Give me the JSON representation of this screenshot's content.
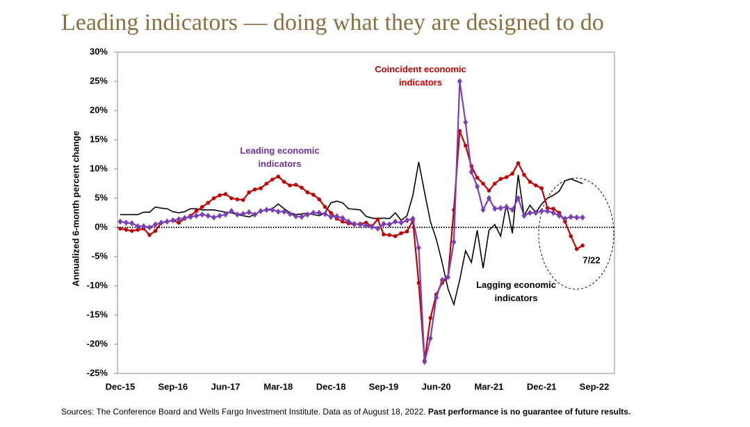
{
  "chart_data": {
    "type": "line",
    "title": "Leading indicators — doing what they are designed to do",
    "y_label": "Annualized 6-month percent change",
    "source": "Sources: The Conference Board and Wells Fargo Investment Institute. Data as of August 18, 2022.",
    "source_bold": "Past performance is no guarantee of future results.",
    "end_annotation": "7/22",
    "categories": [
      "Dec-15",
      null,
      null,
      null,
      null,
      null,
      null,
      null,
      null,
      "Sep-16",
      null,
      null,
      null,
      null,
      null,
      null,
      null,
      null,
      "Jun-17",
      null,
      null,
      null,
      null,
      null,
      null,
      null,
      null,
      "Mar-18",
      null,
      null,
      null,
      null,
      null,
      null,
      null,
      null,
      "Dec-18",
      null,
      null,
      null,
      null,
      null,
      null,
      null,
      null,
      "Sep-19",
      null,
      null,
      null,
      null,
      null,
      null,
      null,
      null,
      "Jun-20",
      null,
      null,
      null,
      null,
      null,
      null,
      null,
      null,
      "Mar-21",
      null,
      null,
      null,
      null,
      null,
      null,
      null,
      null,
      "Dec-21",
      null,
      null,
      null,
      null,
      null,
      null,
      null,
      null,
      "Sep-22"
    ],
    "ylim": [
      -25,
      30
    ],
    "yticks": [
      {
        "value": 30,
        "label": "30%"
      },
      {
        "value": 25,
        "label": "25%"
      },
      {
        "value": 20,
        "label": "20%"
      },
      {
        "value": 15,
        "label": "15%"
      },
      {
        "value": 10,
        "label": "10%"
      },
      {
        "value": 5,
        "label": "5%"
      },
      {
        "value": 0,
        "label": "0%"
      },
      {
        "value": -5,
        "label": "-5%"
      },
      {
        "value": -10,
        "label": "-10%"
      },
      {
        "value": -15,
        "label": "-15%"
      },
      {
        "value": -20,
        "label": "-20%"
      },
      {
        "value": -25,
        "label": "-25%"
      }
    ],
    "series": [
      {
        "name": "Lagging economic indicators",
        "color": "#000000",
        "marker": "none",
        "values": [
          2.2,
          2.2,
          2.2,
          2.2,
          2.6,
          2.6,
          3.5,
          3.3,
          3.2,
          2.7,
          2.5,
          2.7,
          3.2,
          3.2,
          3.0,
          3.0,
          3.0,
          2.8,
          2.6,
          2.5,
          2.2,
          2.0,
          1.8,
          2.2,
          2.8,
          3.0,
          3.2,
          4.0,
          3.2,
          2.5,
          2.2,
          2.3,
          2.4,
          2.2,
          2.0,
          2.5,
          4.2,
          4.5,
          4.2,
          3.2,
          3.1,
          3.0,
          1.9,
          1.6,
          1.5,
          1.6,
          1.5,
          2.5,
          1.2,
          2.0,
          5.5,
          11.2,
          6.0,
          1.0,
          -2.0,
          -6.0,
          -10.5,
          -13.2,
          -9.0,
          -4.0,
          -6.0,
          -0.5,
          -7.0,
          -0.5,
          0.5,
          -1.5,
          4.0,
          -1.0,
          9.0,
          2.0,
          3.8,
          2.5,
          4.0,
          5.0,
          5.5,
          6.2,
          8.0,
          8.3,
          7.9,
          7.5,
          null,
          null
        ]
      },
      {
        "name": "Coincident economic indicators",
        "color": "#c00000",
        "marker": "circle",
        "values": [
          -0.2,
          -0.4,
          -0.6,
          -0.4,
          -0.2,
          -1.3,
          -0.6,
          0.8,
          1.0,
          1.2,
          0.8,
          1.5,
          2.0,
          2.8,
          3.5,
          4.2,
          5.0,
          5.5,
          5.7,
          5.0,
          4.8,
          4.7,
          6.0,
          6.5,
          6.7,
          7.5,
          8.2,
          8.7,
          7.8,
          7.2,
          7.3,
          6.8,
          6.0,
          5.6,
          4.8,
          3.5,
          2.5,
          1.5,
          1.0,
          0.7,
          0.5,
          0.6,
          0.8,
          0.2,
          1.4,
          -1.2,
          -1.3,
          -1.5,
          -1.0,
          -0.7,
          1.2,
          -9.5,
          -22.8,
          -15.5,
          -11.5,
          -9.5,
          -8.5,
          3,
          16.5,
          14,
          10.5,
          8.5,
          7.5,
          6.3,
          7.5,
          8.3,
          8.6,
          9.2,
          11,
          9,
          7.8,
          7.2,
          6.7,
          3.3,
          3.2,
          2.5,
          1.0,
          -1.5,
          -3.7,
          -3.1,
          null,
          null
        ]
      },
      {
        "name": "Leading economic indicators",
        "color": "#7b3fb5",
        "marker": "diamond",
        "values": [
          1,
          0.8,
          0.7,
          0.2,
          0.2,
          0,
          0.5,
          0.8,
          1.0,
          1.2,
          1.4,
          1.6,
          1.8,
          2.0,
          2.2,
          2.0,
          1.7,
          2.0,
          2.2,
          2.8,
          2.2,
          2.3,
          2.6,
          2.2,
          2.8,
          3.0,
          3.0,
          2.7,
          2.7,
          2.3,
          1.9,
          1.8,
          2.2,
          2.5,
          2.5,
          2.3,
          1.8,
          1.9,
          1.6,
          1.0,
          0.6,
          0.5,
          0.3,
          0.1,
          -0.2,
          0.6,
          0.5,
          1.0,
          0.8,
          1.2,
          1.5,
          -3.5,
          -23,
          -19,
          -12,
          -9,
          -8.5,
          -2.5,
          25,
          18,
          9.5,
          7,
          3,
          5,
          3.2,
          3.3,
          3.5,
          3,
          5,
          2,
          2.5,
          2.5,
          2.8,
          2.8,
          2.5,
          2.0,
          1.5,
          1.8,
          1.7,
          1.7,
          null,
          null
        ]
      }
    ]
  }
}
